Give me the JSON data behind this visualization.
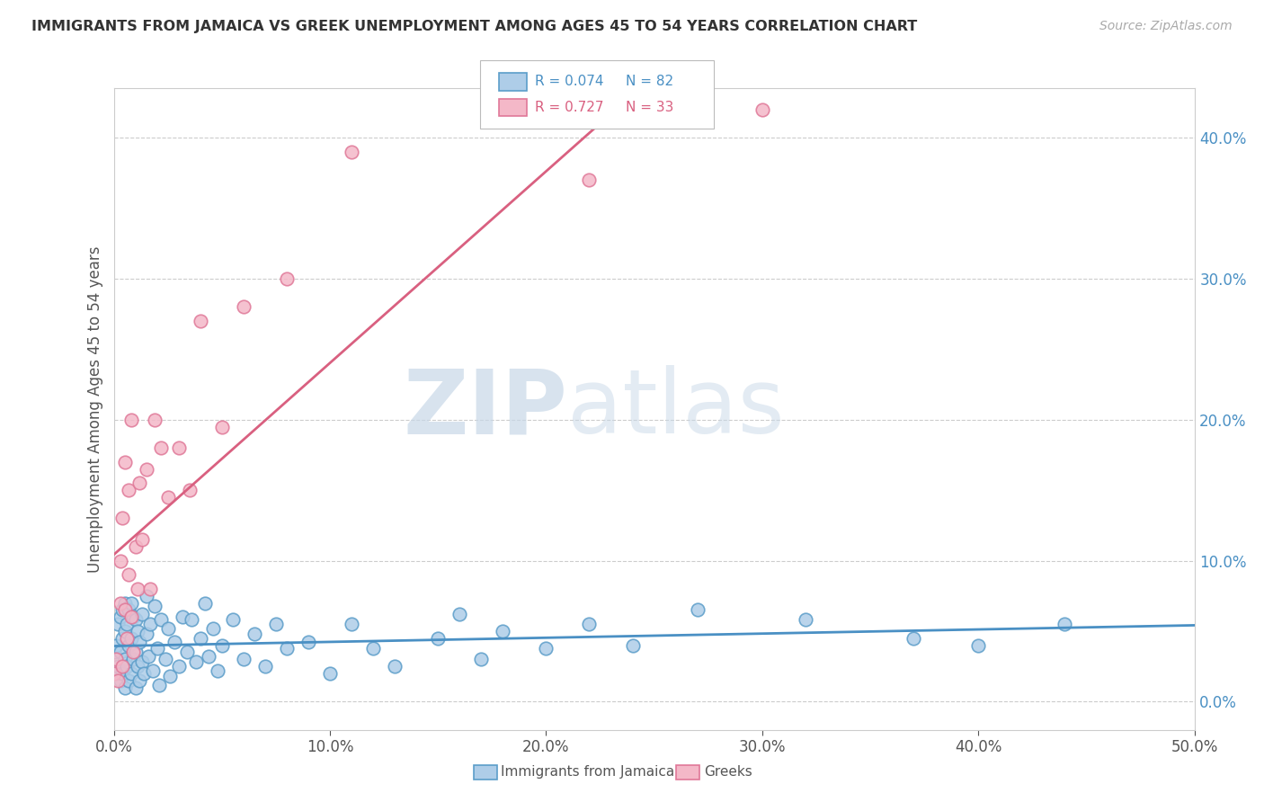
{
  "title": "IMMIGRANTS FROM JAMAICA VS GREEK UNEMPLOYMENT AMONG AGES 45 TO 54 YEARS CORRELATION CHART",
  "source": "Source: ZipAtlas.com",
  "ylabel": "Unemployment Among Ages 45 to 54 years",
  "xlim": [
    0.0,
    0.5
  ],
  "ylim": [
    -0.02,
    0.435
  ],
  "xticks": [
    0.0,
    0.1,
    0.2,
    0.3,
    0.4,
    0.5
  ],
  "xtick_labels": [
    "0.0%",
    "10.0%",
    "20.0%",
    "30.0%",
    "40.0%",
    "50.0%"
  ],
  "yticks_right": [
    0.0,
    0.1,
    0.2,
    0.3,
    0.4
  ],
  "ytick_labels_right": [
    "0.0%",
    "10.0%",
    "20.0%",
    "30.0%",
    "40.0%"
  ],
  "r_jamaica": "R = 0.074",
  "n_jamaica": "N = 82",
  "r_greeks": "R = 0.727",
  "n_greeks": "N = 33",
  "blue_face": "#aecde8",
  "blue_edge": "#5b9dc9",
  "blue_line": "#4a90c4",
  "pink_face": "#f4b8c8",
  "pink_edge": "#e07898",
  "pink_line": "#d96080",
  "watermark_zip": "ZIP",
  "watermark_atlas": "atlas",
  "bg_color": "#ffffff",
  "grid_color": "#cccccc",
  "text_color": "#555555",
  "title_color": "#333333",
  "source_color": "#aaaaaa",
  "jamaica_x": [
    0.0,
    0.001,
    0.001,
    0.002,
    0.002,
    0.003,
    0.003,
    0.003,
    0.004,
    0.004,
    0.004,
    0.005,
    0.005,
    0.005,
    0.005,
    0.006,
    0.006,
    0.007,
    0.007,
    0.007,
    0.008,
    0.008,
    0.008,
    0.009,
    0.009,
    0.01,
    0.01,
    0.01,
    0.011,
    0.011,
    0.012,
    0.012,
    0.013,
    0.013,
    0.014,
    0.015,
    0.015,
    0.016,
    0.017,
    0.018,
    0.019,
    0.02,
    0.021,
    0.022,
    0.024,
    0.025,
    0.026,
    0.028,
    0.03,
    0.032,
    0.034,
    0.036,
    0.038,
    0.04,
    0.042,
    0.044,
    0.046,
    0.048,
    0.05,
    0.055,
    0.06,
    0.065,
    0.07,
    0.075,
    0.08,
    0.09,
    0.1,
    0.11,
    0.12,
    0.13,
    0.15,
    0.16,
    0.17,
    0.18,
    0.2,
    0.22,
    0.24,
    0.27,
    0.32,
    0.37,
    0.4,
    0.44
  ],
  "jamaica_y": [
    0.035,
    0.02,
    0.04,
    0.025,
    0.055,
    0.015,
    0.035,
    0.06,
    0.02,
    0.045,
    0.065,
    0.01,
    0.03,
    0.05,
    0.07,
    0.025,
    0.055,
    0.015,
    0.04,
    0.065,
    0.02,
    0.045,
    0.07,
    0.03,
    0.06,
    0.01,
    0.035,
    0.058,
    0.025,
    0.05,
    0.015,
    0.042,
    0.028,
    0.062,
    0.02,
    0.048,
    0.075,
    0.032,
    0.055,
    0.022,
    0.068,
    0.038,
    0.012,
    0.058,
    0.03,
    0.052,
    0.018,
    0.042,
    0.025,
    0.06,
    0.035,
    0.058,
    0.028,
    0.045,
    0.07,
    0.032,
    0.052,
    0.022,
    0.04,
    0.058,
    0.03,
    0.048,
    0.025,
    0.055,
    0.038,
    0.042,
    0.02,
    0.055,
    0.038,
    0.025,
    0.045,
    0.062,
    0.03,
    0.05,
    0.038,
    0.055,
    0.04,
    0.065,
    0.058,
    0.045,
    0.04,
    0.055
  ],
  "greeks_x": [
    0.0,
    0.001,
    0.002,
    0.003,
    0.003,
    0.004,
    0.004,
    0.005,
    0.005,
    0.006,
    0.007,
    0.007,
    0.008,
    0.008,
    0.009,
    0.01,
    0.011,
    0.012,
    0.013,
    0.015,
    0.017,
    0.019,
    0.022,
    0.025,
    0.03,
    0.035,
    0.04,
    0.05,
    0.06,
    0.08,
    0.11,
    0.22,
    0.3
  ],
  "greeks_y": [
    0.02,
    0.03,
    0.015,
    0.07,
    0.1,
    0.025,
    0.13,
    0.065,
    0.17,
    0.045,
    0.09,
    0.15,
    0.06,
    0.2,
    0.035,
    0.11,
    0.08,
    0.155,
    0.115,
    0.165,
    0.08,
    0.2,
    0.18,
    0.145,
    0.18,
    0.15,
    0.27,
    0.195,
    0.28,
    0.3,
    0.39,
    0.37,
    0.42
  ]
}
